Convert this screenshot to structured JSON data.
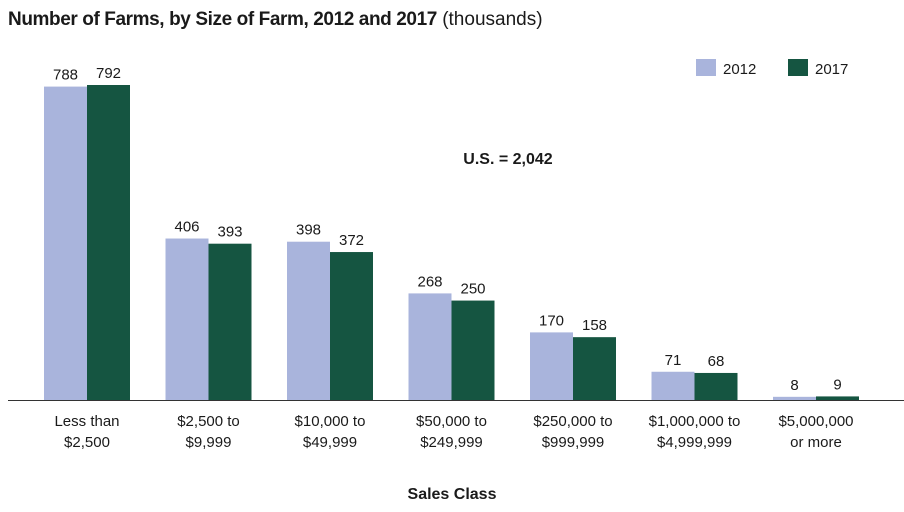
{
  "chart_data": {
    "type": "bar",
    "title": "Number of Farms, by Size of Farm, 2012 and 2017",
    "subtitle": "(thousands)",
    "xlabel": "Sales Class",
    "ylabel": "",
    "categories": [
      [
        "Less than",
        "$2,500"
      ],
      [
        "$2,500 to",
        "$9,999"
      ],
      [
        "$10,000 to",
        "$49,999"
      ],
      [
        "$50,000 to",
        "$249,999"
      ],
      [
        "$250,000 to",
        "$999,999"
      ],
      [
        "$1,000,000 to",
        "$4,999,999"
      ],
      [
        "$5,000,000",
        "or more"
      ]
    ],
    "series": [
      {
        "name": "2012",
        "color": "#a9b4dc",
        "values": [
          788,
          406,
          398,
          268,
          170,
          71,
          8
        ]
      },
      {
        "name": "2017",
        "color": "#155541",
        "values": [
          792,
          393,
          372,
          250,
          158,
          68,
          9
        ]
      }
    ],
    "ylim": [
      0,
      850
    ],
    "grid": false,
    "legend": "top-right",
    "annotation": "U.S. = 2,042"
  }
}
